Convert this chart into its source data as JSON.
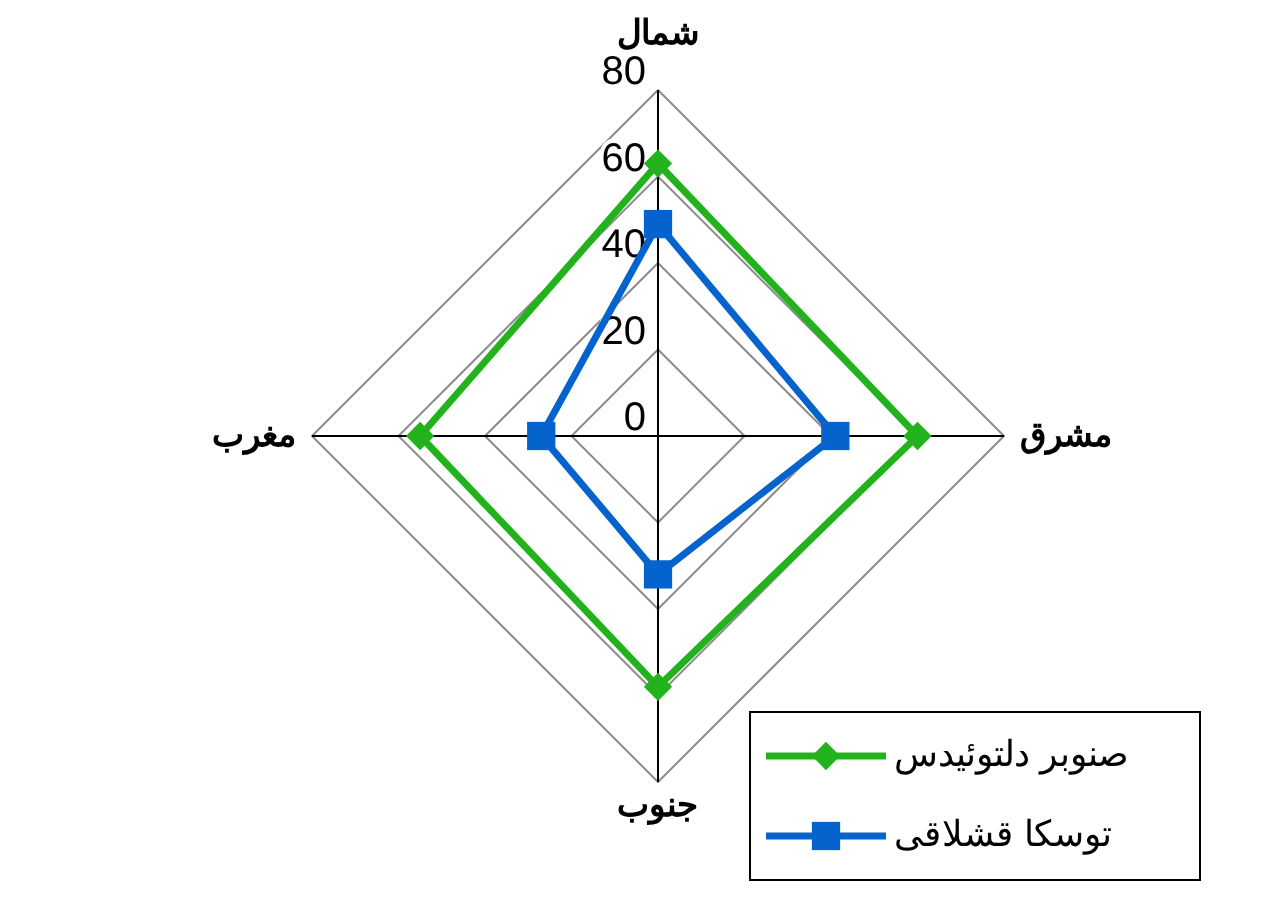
{
  "chart_data": {
    "type": "radar",
    "categories": [
      "شمال",
      "مشرق",
      "جنوب",
      "مغرب"
    ],
    "ylim": [
      0,
      80
    ],
    "yticks": [
      0,
      20,
      40,
      60,
      80
    ],
    "grid": true,
    "legend": "bottom right",
    "series": [
      {
        "name": "صنوبر دلتوئیدس",
        "color": "#22b31c",
        "marker": "diamond",
        "values": [
          63,
          60,
          58,
          55
        ]
      },
      {
        "name": "توسکا قشلاقی",
        "color": "#0563cd",
        "marker": "square",
        "values": [
          49,
          41,
          32,
          27
        ]
      }
    ]
  }
}
